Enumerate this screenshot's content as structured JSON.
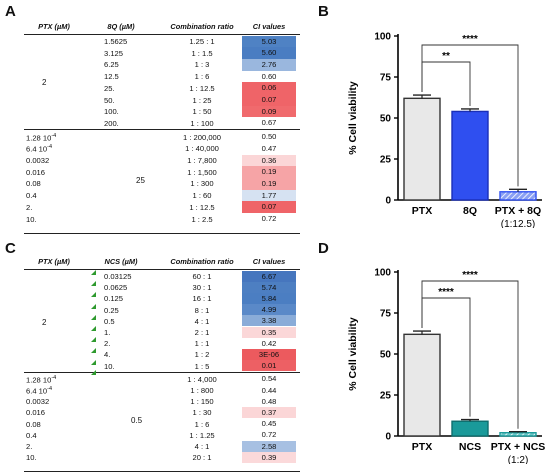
{
  "panels": {
    "a": "A",
    "b": "B",
    "c": "C",
    "d": "D"
  },
  "table_a": {
    "headers": {
      "c1": "PTX (µM)",
      "c2": "8Q (µM)",
      "c3": "Combination ratio",
      "c4": "CI values"
    },
    "groups": [
      "2",
      "25"
    ],
    "rows": [
      {
        "drug": "1.5625",
        "ratio": "1.25 : 1",
        "ci": "5.03",
        "color": "#4f82c4"
      },
      {
        "drug": "3.125",
        "ratio": "1 : 1.5",
        "ci": "5.60",
        "color": "#4a7dc2"
      },
      {
        "drug": "6.25",
        "ratio": "1 : 3",
        "ci": "2.76",
        "color": "#9ab7de"
      },
      {
        "drug": "12.5",
        "ratio": "1 : 6",
        "ci": "0.60",
        "color": "#ffffff"
      },
      {
        "drug": "25.",
        "ratio": "1 : 12.5",
        "ci": "0.06",
        "color": "#ef6468"
      },
      {
        "drug": "50.",
        "ratio": "1 : 25",
        "ci": "0.07",
        "color": "#ef6468"
      },
      {
        "drug": "100.",
        "ratio": "1 : 50",
        "ci": "0.09",
        "color": "#f06a6d"
      },
      {
        "drug": "200.",
        "ratio": "1 : 100",
        "ci": "0.67",
        "color": "#ffffff"
      },
      {
        "drug": "1.28 10-4",
        "ratio": "1 : 200,000",
        "ci": "0.50",
        "color": "#ffffff"
      },
      {
        "drug": "6.4 10-4",
        "ratio": "1 : 40,000",
        "ci": "0.47",
        "color": "#ffffff"
      },
      {
        "drug": "0.0032",
        "ratio": "1 : 7,800",
        "ci": "0.36",
        "color": "#fbd6d7"
      },
      {
        "drug": "0.016",
        "ratio": "1 : 1,500",
        "ci": "0.19",
        "color": "#f6a4a6"
      },
      {
        "drug": "0.08",
        "ratio": "1 : 300",
        "ci": "0.19",
        "color": "#f6a4a6"
      },
      {
        "drug": "0.4",
        "ratio": "1 : 60",
        "ci": "1.77",
        "color": "#d6e2f2"
      },
      {
        "drug": "2.",
        "ratio": "1 : 12.5",
        "ci": "0.07",
        "color": "#ef6468"
      },
      {
        "drug": "10.",
        "ratio": "1 : 2.5",
        "ci": "0.72",
        "color": "#ffffff"
      }
    ]
  },
  "table_c": {
    "headers": {
      "c1": "PTX (µM)",
      "c2": "NCS (µM)",
      "c3": "Combination ratio",
      "c4": "CI values"
    },
    "groups": [
      "2",
      "0.5"
    ],
    "rows": [
      {
        "drug": "0.03125",
        "ratio": "60 : 1",
        "ci": "6.67",
        "color": "#4676be"
      },
      {
        "drug": "0.0625",
        "ratio": "30 : 1",
        "ci": "5.74",
        "color": "#4d7fc2"
      },
      {
        "drug": "0.125",
        "ratio": "16 : 1",
        "ci": "5.84",
        "color": "#4b7ec2"
      },
      {
        "drug": "0.25",
        "ratio": "8 : 1",
        "ci": "4.99",
        "color": "#5a89c8"
      },
      {
        "drug": "0.5",
        "ratio": "4 : 1",
        "ci": "3.38",
        "color": "#8aacd8"
      },
      {
        "drug": "1.",
        "ratio": "2 : 1",
        "ci": "0.35",
        "color": "#fbd7d8"
      },
      {
        "drug": "2.",
        "ratio": "1 : 1",
        "ci": "0.42",
        "color": "#ffffff"
      },
      {
        "drug": "4.",
        "ratio": "1 : 2",
        "ci": "3E-06",
        "color": "#ec5a5e"
      },
      {
        "drug": "10.",
        "ratio": "1 : 5",
        "ci": "0.01",
        "color": "#ed6064"
      },
      {
        "drug": "1.28 10-4",
        "ratio": "1 : 4,000",
        "ci": "0.54",
        "color": "#ffffff"
      },
      {
        "drug": "6.4 10-4",
        "ratio": "1 : 800",
        "ci": "0.44",
        "color": "#ffffff"
      },
      {
        "drug": "0.0032",
        "ratio": "1 : 150",
        "ci": "0.48",
        "color": "#ffffff"
      },
      {
        "drug": "0.016",
        "ratio": "1 : 30",
        "ci": "0.37",
        "color": "#fbd6d7"
      },
      {
        "drug": "0.08",
        "ratio": "1 : 6",
        "ci": "0.45",
        "color": "#ffffff"
      },
      {
        "drug": "0.4",
        "ratio": "1 : 1.25",
        "ci": "0.72",
        "color": "#ffffff"
      },
      {
        "drug": "2.",
        "ratio": "4 : 1",
        "ci": "2.58",
        "color": "#a7c0e2"
      },
      {
        "drug": "10.",
        "ratio": "20 : 1",
        "ci": "0.39",
        "color": "#fbd9da"
      }
    ]
  },
  "chart_data": [
    {
      "type": "bar",
      "ylabel": "% Cell viability",
      "ylim": [
        0,
        100
      ],
      "yticks": [
        0,
        25,
        50,
        75,
        100
      ],
      "categories": [
        "PTX",
        "8Q",
        "PTX + 8Q"
      ],
      "sublabels": [
        "",
        "",
        "(1:12.5)"
      ],
      "values": [
        62,
        54,
        5
      ],
      "errors": [
        2,
        1.5,
        1.5
      ],
      "fills": [
        "#e8e8e8",
        "#2f4ff0",
        "#8aa0f4"
      ],
      "strokes": [
        "#333333",
        "#1a2fb8",
        "#2f4ff0"
      ],
      "hatched": [
        false,
        false,
        true
      ],
      "significance": [
        {
          "from": 0,
          "to": 1,
          "label": "**"
        },
        {
          "from": 0,
          "to": 2,
          "label": "****"
        }
      ]
    },
    {
      "type": "bar",
      "ylabel": "% Cell viability",
      "ylim": [
        0,
        100
      ],
      "yticks": [
        0,
        25,
        50,
        75,
        100
      ],
      "categories": [
        "PTX",
        "NCS",
        "PTX + NCS"
      ],
      "sublabels": [
        "",
        "",
        "(1:2)"
      ],
      "values": [
        62,
        9,
        2
      ],
      "errors": [
        2,
        1,
        0.6
      ],
      "fills": [
        "#e8e8e8",
        "#1a9a9a",
        "#6cc6c6"
      ],
      "strokes": [
        "#333333",
        "#0e6e6e",
        "#1a9a9a"
      ],
      "hatched": [
        false,
        false,
        true
      ],
      "significance": [
        {
          "from": 0,
          "to": 1,
          "label": "****"
        },
        {
          "from": 0,
          "to": 2,
          "label": "****"
        }
      ]
    }
  ]
}
